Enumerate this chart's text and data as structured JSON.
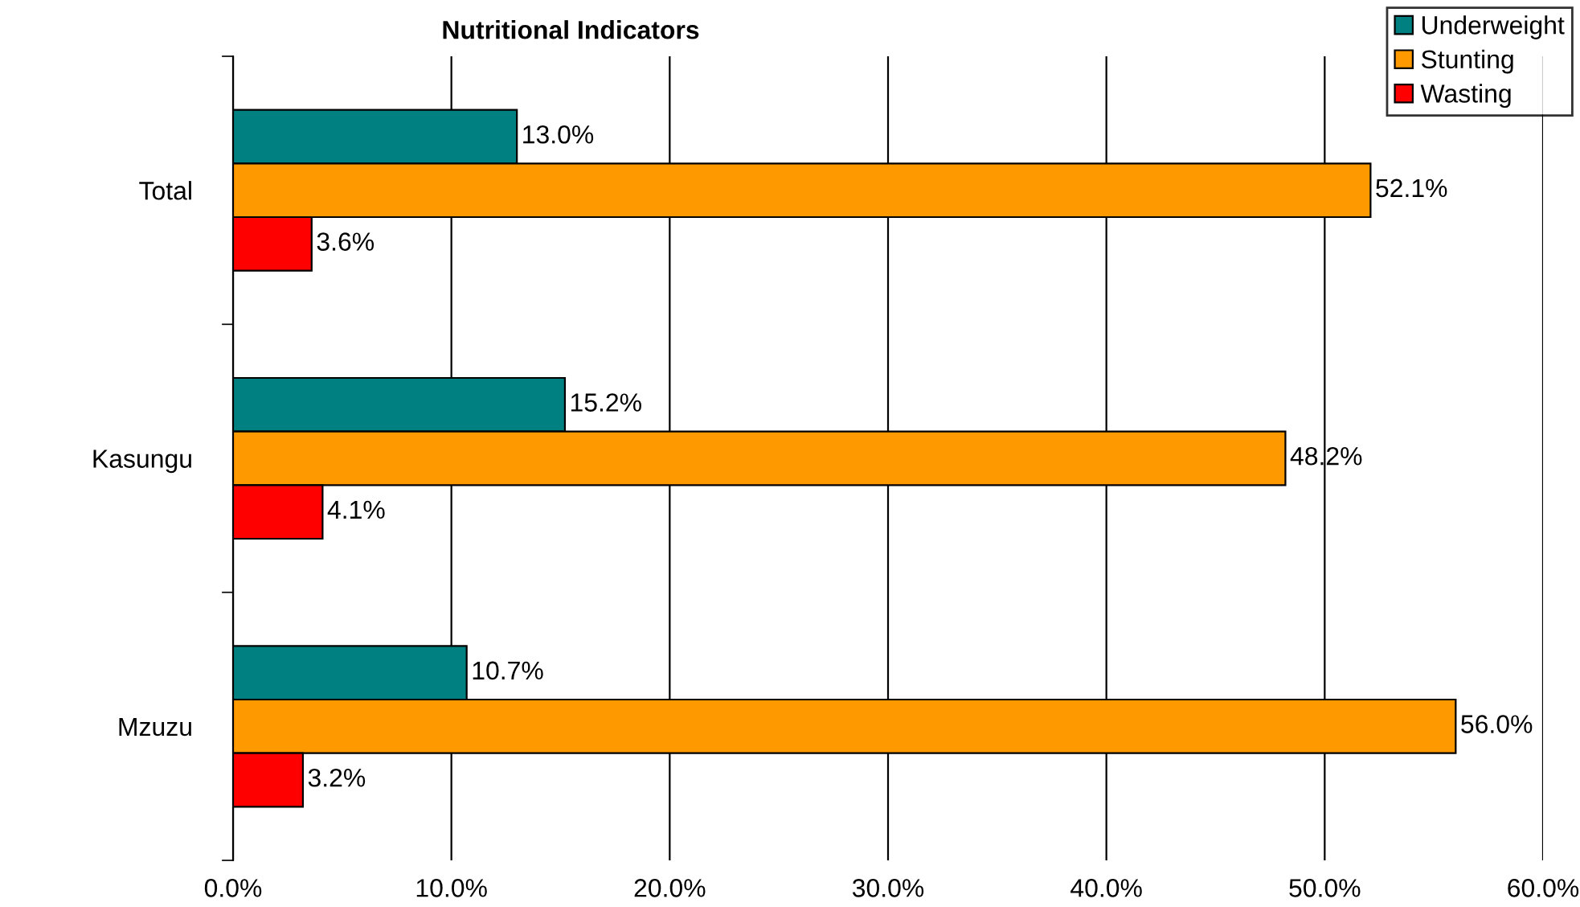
{
  "chart_data": {
    "type": "bar",
    "orientation": "horizontal",
    "title": "Nutritional Indicators",
    "categories": [
      "Total",
      "Kasungu",
      "Mzuzu"
    ],
    "series": [
      {
        "name": "Underweight",
        "color": "#008080",
        "values": [
          13.0,
          15.2,
          10.7
        ],
        "value_labels": [
          "13.0%",
          "15.2%",
          "10.7%"
        ]
      },
      {
        "name": "Stunting",
        "color": "#ff9900",
        "values": [
          52.1,
          48.2,
          56.0
        ],
        "value_labels": [
          "52.1%",
          "48.2%",
          "56.0%"
        ]
      },
      {
        "name": "Wasting",
        "color": "#ff0000",
        "values": [
          3.6,
          4.1,
          3.2
        ],
        "value_labels": [
          "3.6%",
          "4.1%",
          "3.2%"
        ]
      }
    ],
    "xlim": [
      0,
      60
    ],
    "xticks": [
      {
        "value": 0,
        "label": "0.0%"
      },
      {
        "value": 10,
        "label": "10.0%"
      },
      {
        "value": 20,
        "label": "20.0%"
      },
      {
        "value": 30,
        "label": "30.0%"
      },
      {
        "value": 40,
        "label": "40.0%"
      },
      {
        "value": 50,
        "label": "50.0%"
      },
      {
        "value": 60,
        "label": "60.0%"
      }
    ],
    "grid": "x",
    "legend": "top right"
  }
}
